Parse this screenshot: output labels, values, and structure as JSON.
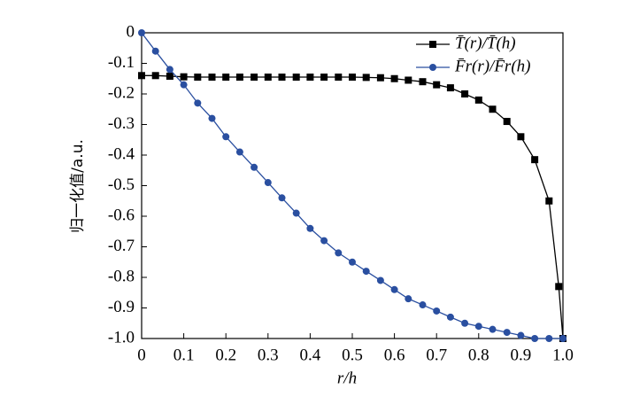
{
  "chart_data": {
    "type": "line",
    "xlabel": "r/h",
    "ylabel": "归一化值/a.u.",
    "xlim": [
      0,
      1
    ],
    "ylim": [
      -1,
      0
    ],
    "xticks": [
      0,
      0.1,
      0.2,
      0.3,
      0.4,
      0.5,
      0.6,
      0.7,
      0.8,
      0.9,
      {
        "value": 1,
        "label": "1.0"
      }
    ],
    "yticks": [
      0,
      -0.1,
      -0.2,
      -0.3,
      -0.4,
      -0.5,
      -0.6,
      -0.7,
      -0.8,
      -0.9,
      {
        "value": -1,
        "label": "-1.0"
      }
    ],
    "legend": "top-right",
    "series": [
      {
        "name": "T̄(r)/T̄(h)",
        "color": "#000000",
        "marker": "square",
        "x": [
          0,
          0.033,
          0.067,
          0.1,
          0.133,
          0.167,
          0.2,
          0.233,
          0.267,
          0.3,
          0.333,
          0.367,
          0.4,
          0.433,
          0.467,
          0.5,
          0.533,
          0.567,
          0.6,
          0.633,
          0.667,
          0.7,
          0.733,
          0.767,
          0.8,
          0.833,
          0.867,
          0.9,
          0.933,
          0.967,
          0.99,
          1
        ],
        "values": [
          -0.14,
          -0.14,
          -0.142,
          -0.144,
          -0.145,
          -0.145,
          -0.145,
          -0.145,
          -0.145,
          -0.145,
          -0.145,
          -0.145,
          -0.145,
          -0.145,
          -0.145,
          -0.145,
          -0.146,
          -0.147,
          -0.15,
          -0.155,
          -0.16,
          -0.17,
          -0.18,
          -0.2,
          -0.22,
          -0.25,
          -0.29,
          -0.34,
          -0.415,
          -0.55,
          -0.83,
          -1
        ]
      },
      {
        "name": "F̄r(r)/F̄r(h)",
        "color": "#2a4fa0",
        "marker": "circle",
        "x": [
          0,
          0.033,
          0.067,
          0.1,
          0.133,
          0.167,
          0.2,
          0.233,
          0.267,
          0.3,
          0.333,
          0.367,
          0.4,
          0.433,
          0.467,
          0.5,
          0.533,
          0.567,
          0.6,
          0.633,
          0.667,
          0.7,
          0.733,
          0.767,
          0.8,
          0.833,
          0.867,
          0.9,
          0.933,
          0.967,
          1
        ],
        "values": [
          0,
          -0.06,
          -0.12,
          -0.17,
          -0.23,
          -0.28,
          -0.34,
          -0.39,
          -0.44,
          -0.49,
          -0.54,
          -0.59,
          -0.64,
          -0.68,
          -0.72,
          -0.75,
          -0.78,
          -0.81,
          -0.84,
          -0.87,
          -0.89,
          -0.91,
          -0.93,
          -0.95,
          -0.96,
          -0.97,
          -0.98,
          -0.99,
          -1,
          -1,
          -1
        ]
      }
    ]
  }
}
